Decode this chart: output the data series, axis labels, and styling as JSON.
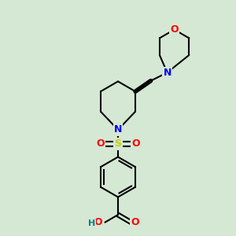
{
  "bg_color": "#d4e8d4",
  "bond_color": "#000000",
  "bond_lw": 1.5,
  "atom_colors": {
    "O": "#ff0000",
    "N": "#0000ff",
    "S": "#cccc00",
    "C": "#000000",
    "H": "#008080"
  },
  "font_size": 9,
  "fig_size": [
    3.0,
    3.0
  ],
  "dpi": 100
}
